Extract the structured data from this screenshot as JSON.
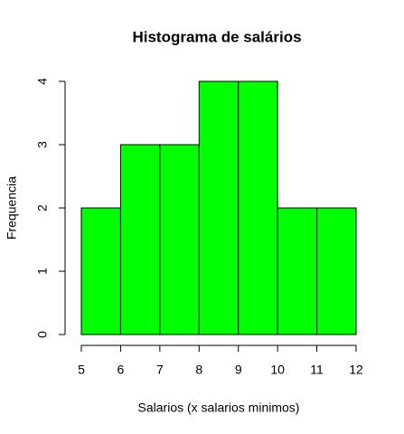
{
  "chart_data": {
    "type": "histogram",
    "title": "Histograma de salários",
    "xlabel": "Salarios (x salarios minimos)",
    "ylabel": "Frequencia",
    "bins": [
      5,
      6,
      7,
      8,
      9,
      10,
      11,
      12
    ],
    "counts": [
      2,
      3,
      3,
      4,
      4,
      2,
      2
    ],
    "color": "#00ff00",
    "edgecolor": "#000000",
    "xlim": [
      5,
      12
    ],
    "xticks": [
      5,
      6,
      7,
      8,
      9,
      10,
      11,
      12
    ],
    "ylim": [
      0,
      4
    ],
    "yticks": [
      0,
      1,
      2,
      3,
      4
    ],
    "grid": false
  }
}
